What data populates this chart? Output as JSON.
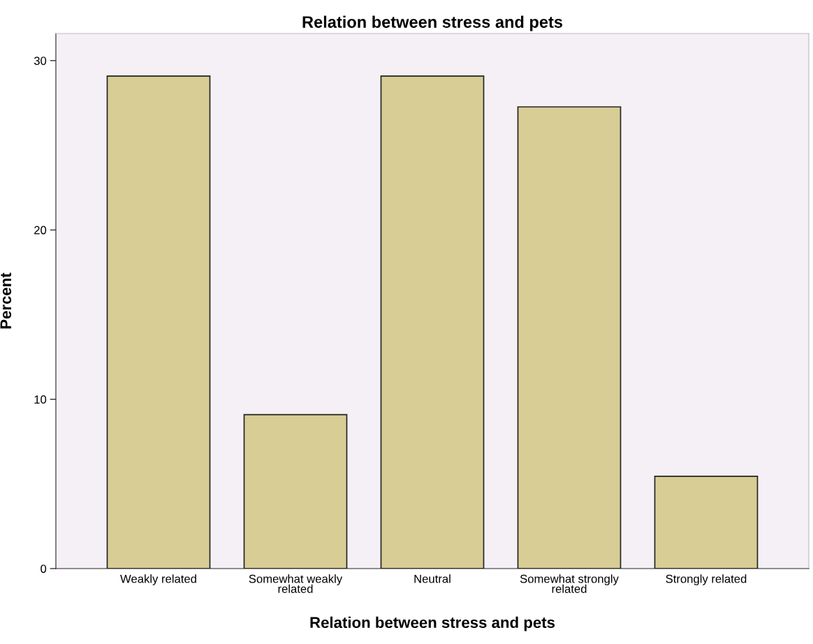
{
  "chart_data": {
    "type": "bar",
    "title": "Relation between stress and pets",
    "xlabel": "Relation between stress and pets",
    "ylabel": "Percent",
    "categories": [
      "Weakly related",
      "Somewhat weakly\nrelated",
      "Neutral",
      "Somewhat strongly\nrelated",
      "Strongly related"
    ],
    "values": [
      29.09,
      9.09,
      29.09,
      27.27,
      5.45
    ],
    "color": "#d7cd95",
    "ylim": [
      0,
      31.6
    ],
    "yticks": [
      0,
      10,
      20,
      30
    ],
    "grid": false,
    "legend": false
  }
}
